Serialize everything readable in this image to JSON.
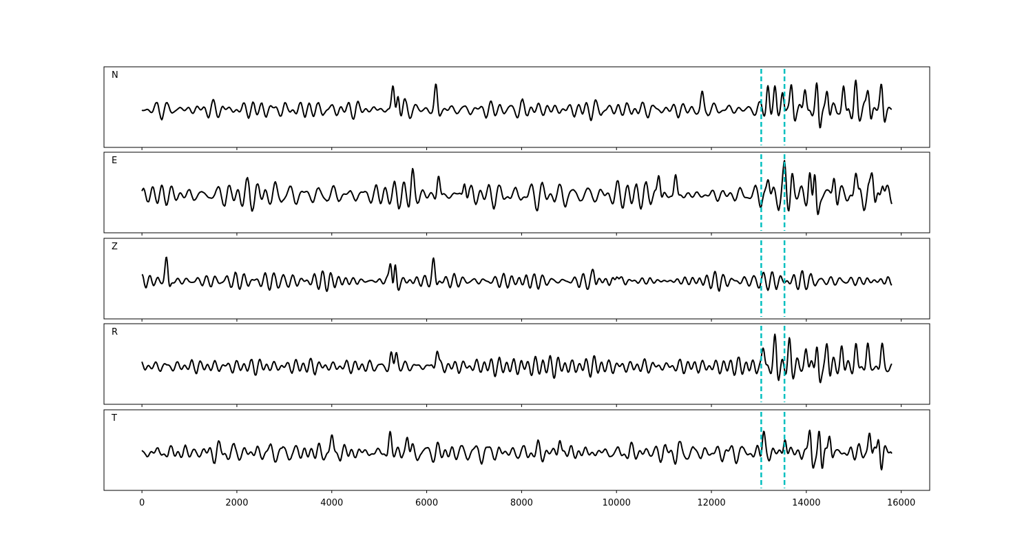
{
  "chart_data": {
    "type": "line",
    "xlim": [
      -800,
      16600
    ],
    "x_ticks": [
      0,
      2000,
      4000,
      6000,
      8000,
      10000,
      12000,
      14000,
      16000
    ],
    "x_tick_labels": [
      "0",
      "2000",
      "4000",
      "6000",
      "8000",
      "10000",
      "12000",
      "14000",
      "16000"
    ],
    "x_range": [
      0,
      15800
    ],
    "markers": [
      13050,
      13540
    ],
    "marker_color": "#00bfbf",
    "trace_color": "#000000",
    "panels": [
      {
        "label": "N",
        "show_markers": true,
        "features": [
          [
            5300,
            0.7
          ],
          [
            5400,
            0.55
          ],
          [
            6200,
            0.6
          ],
          [
            11800,
            0.4
          ],
          [
            13200,
            0.75
          ],
          [
            13350,
            0.75
          ],
          [
            13500,
            0.6
          ],
          [
            13700,
            0.75
          ],
          [
            13980,
            0.7
          ],
          [
            14250,
            1.0
          ],
          [
            14450,
            0.7
          ],
          [
            14800,
            0.8
          ],
          [
            15050,
            0.7
          ],
          [
            15320,
            0.8
          ],
          [
            15600,
            0.8
          ]
        ],
        "base_amplitude": 0.22
      },
      {
        "label": "E",
        "show_markers": true,
        "features": [
          [
            5700,
            0.5
          ],
          [
            6250,
            0.55
          ],
          [
            6800,
            0.5
          ],
          [
            10900,
            0.65
          ],
          [
            11250,
            0.6
          ],
          [
            13200,
            0.5
          ],
          [
            13550,
            0.55
          ],
          [
            13700,
            0.55
          ],
          [
            14100,
            1.0
          ],
          [
            14200,
            0.95
          ],
          [
            14600,
            0.7
          ],
          [
            15050,
            0.7
          ],
          [
            15400,
            0.65
          ],
          [
            15600,
            0.45
          ]
        ],
        "base_amplitude": 0.28
      },
      {
        "label": "Z",
        "show_markers": true,
        "features": [
          [
            530,
            0.75
          ],
          [
            5270,
            1.0
          ],
          [
            5340,
            0.75
          ],
          [
            6150,
            0.6
          ],
          [
            9500,
            0.3
          ],
          [
            10000,
            0.3
          ]
        ],
        "base_amplitude": 0.18
      },
      {
        "label": "R",
        "show_markers": true,
        "features": [
          [
            5250,
            0.4
          ],
          [
            5350,
            0.4
          ],
          [
            6220,
            0.55
          ],
          [
            13100,
            0.6
          ],
          [
            13350,
            0.7
          ],
          [
            13650,
            0.6
          ],
          [
            14000,
            0.55
          ],
          [
            14250,
            1.0
          ],
          [
            14450,
            0.65
          ],
          [
            14750,
            0.55
          ],
          [
            15050,
            0.6
          ],
          [
            15300,
            0.65
          ],
          [
            15600,
            0.6
          ]
        ],
        "base_amplitude": 0.2
      },
      {
        "label": "T",
        "show_markers": true,
        "features": [
          [
            5230,
            0.55
          ],
          [
            5600,
            0.6
          ],
          [
            4000,
            0.45
          ],
          [
            8800,
            0.45
          ],
          [
            13100,
            0.6
          ],
          [
            13550,
            0.5
          ],
          [
            14100,
            1.0
          ],
          [
            14300,
            1.0
          ],
          [
            14500,
            0.7
          ],
          [
            15350,
            0.85
          ],
          [
            15550,
            0.95
          ]
        ],
        "base_amplitude": 0.28
      }
    ]
  }
}
